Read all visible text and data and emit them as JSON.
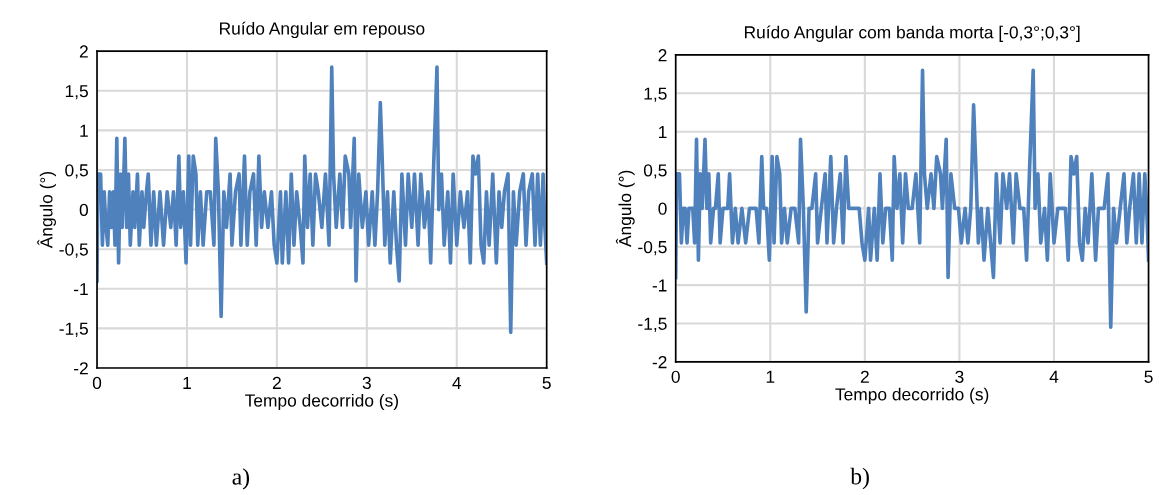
{
  "chart_data": [
    {
      "type": "line",
      "title": "Ruído Angular em repouso",
      "xlabel": "Tempo decorrido (s)",
      "ylabel": "Ângulo (°)",
      "annotations": [
        "a)"
      ],
      "xlim": [
        0,
        5
      ],
      "xticks": [
        0,
        1,
        2,
        3,
        4,
        5
      ],
      "ylim": [
        -2,
        2
      ],
      "yticks": [
        {
          "value": -2,
          "label": "-2"
        },
        {
          "value": -1.5,
          "label": "-1,5"
        },
        {
          "value": -1,
          "label": "-1"
        },
        {
          "value": -0.5,
          "label": "-0,5"
        },
        {
          "value": 0,
          "label": "0"
        },
        {
          "value": 0.5,
          "label": "0,5"
        },
        {
          "value": 1,
          "label": "1"
        },
        {
          "value": 1.5,
          "label": "1,5"
        },
        {
          "value": 2,
          "label": "2"
        }
      ],
      "grid": true,
      "legend": false,
      "marker": "none",
      "line_style": "solid",
      "x": [
        0,
        0.01,
        0.04,
        0.06,
        0.08,
        0.1,
        0.12,
        0.14,
        0.16,
        0.18,
        0.2,
        0.22,
        0.24,
        0.26,
        0.28,
        0.31,
        0.33,
        0.35,
        0.37,
        0.4,
        0.42,
        0.45,
        0.47,
        0.5,
        0.52,
        0.55,
        0.57,
        0.6,
        0.63,
        0.66,
        0.7,
        0.74,
        0.78,
        0.82,
        0.85,
        0.88,
        0.91,
        0.93,
        0.96,
        0.99,
        1.02,
        1.04,
        1.07,
        1.1,
        1.12,
        1.15,
        1.18,
        1.22,
        1.26,
        1.3,
        1.32,
        1.35,
        1.38,
        1.41,
        1.44,
        1.48,
        1.5,
        1.54,
        1.58,
        1.6,
        1.64,
        1.67,
        1.7,
        1.74,
        1.77,
        1.8,
        1.83,
        1.86,
        1.9,
        1.94,
        1.97,
        2.0,
        2.04,
        2.06,
        2.1,
        2.13,
        2.16,
        2.19,
        2.22,
        2.26,
        2.29,
        2.31,
        2.34,
        2.37,
        2.4,
        2.43,
        2.46,
        2.5,
        2.54,
        2.58,
        2.61,
        2.63,
        2.66,
        2.7,
        2.73,
        2.76,
        2.8,
        2.82,
        2.86,
        2.88,
        2.91,
        2.95,
        2.99,
        3.02,
        3.06,
        3.09,
        3.12,
        3.15,
        3.17,
        3.2,
        3.23,
        3.26,
        3.3,
        3.33,
        3.36,
        3.39,
        3.43,
        3.46,
        3.5,
        3.53,
        3.57,
        3.6,
        3.64,
        3.68,
        3.71,
        3.74,
        3.78,
        3.8,
        3.83,
        3.86,
        3.9,
        3.93,
        3.96,
        4.0,
        4.04,
        4.08,
        4.12,
        4.15,
        4.18,
        4.21,
        4.24,
        4.27,
        4.3,
        4.33,
        4.36,
        4.4,
        4.44,
        4.47,
        4.5,
        4.53,
        4.57,
        4.6,
        4.63,
        4.66,
        4.7,
        4.74,
        4.77,
        4.8,
        4.84,
        4.87,
        4.9,
        4.93,
        4.96,
        4.98,
        5.0
      ],
      "series": [
        {
          "color": "#4f81bd",
          "values": [
            -0.9,
            0.45,
            0.45,
            -0.45,
            0.225,
            -0.225,
            -0.45,
            0.225,
            -0.225,
            0.225,
            -0.45,
            0.9,
            -0.675,
            0.45,
            -0.225,
            0.9,
            -0.225,
            0.45,
            -0.45,
            0.225,
            -0.225,
            0.45,
            -0.45,
            0.225,
            -0.225,
            0.225,
            0.45,
            -0.45,
            0.225,
            -0.45,
            0.225,
            -0.45,
            0.225,
            -0.225,
            0.225,
            -0.45,
            0.675,
            -0.225,
            0.225,
            -0.675,
            0.675,
            -0.45,
            0.675,
            0.45,
            -0.45,
            0.225,
            -0.45,
            0.225,
            0.225,
            -0.45,
            0.9,
            0.225,
            -1.35,
            0.225,
            -0.225,
            0.45,
            -0.45,
            0.225,
            0.45,
            -0.45,
            0.675,
            -0.45,
            0.225,
            0.45,
            -0.45,
            0.675,
            -0.225,
            0.225,
            -0.225,
            0.225,
            -0.45,
            -0.675,
            0.225,
            -0.675,
            0.225,
            -0.675,
            0.45,
            -0.45,
            0.225,
            -0.225,
            -0.675,
            0.675,
            -0.225,
            0.45,
            -0.45,
            0.45,
            0.225,
            -0.225,
            0.45,
            -0.45,
            1.8,
            0.45,
            -0.225,
            0.45,
            -0.225,
            0.675,
            0.45,
            -0.225,
            0.9,
            -0.9,
            0.45,
            -0.225,
            0.225,
            -0.45,
            0.225,
            -0.45,
            0.225,
            1.35,
            0.675,
            -0.45,
            0.225,
            -0.675,
            0.225,
            -0.45,
            -0.9,
            0.45,
            -0.45,
            0.45,
            -0.225,
            0.45,
            -0.45,
            0.45,
            -0.225,
            0.225,
            -0.675,
            0.45,
            1.8,
            0.0,
            0.45,
            -0.45,
            0.225,
            -0.675,
            0.45,
            -0.45,
            0.225,
            -0.225,
            0.225,
            -0.675,
            0.675,
            0.45,
            0.675,
            -0.45,
            -0.675,
            0.225,
            -0.45,
            0.45,
            -0.675,
            0.225,
            -0.225,
            0.225,
            0.45,
            -1.55,
            0.225,
            -0.45,
            0.225,
            0.45,
            -0.45,
            0.225,
            0.45,
            -0.45,
            0.45,
            -0.45,
            0.45,
            -0.225,
            -0.675
          ]
        }
      ]
    },
    {
      "type": "line",
      "title": "Ruído Angular com banda morta [-0,3°;0,3°]",
      "xlabel": "Tempo decorrido (s)",
      "ylabel": "Ângulo (°)",
      "annotations": [
        "b)"
      ],
      "xlim": [
        0,
        5
      ],
      "xticks": [
        0,
        1,
        2,
        3,
        4,
        5
      ],
      "ylim": [
        -2,
        2
      ],
      "yticks": [
        {
          "value": -2,
          "label": "-2"
        },
        {
          "value": -1.5,
          "label": "-1,5"
        },
        {
          "value": -1,
          "label": "-1"
        },
        {
          "value": -0.5,
          "label": "-0,5"
        },
        {
          "value": 0,
          "label": "0"
        },
        {
          "value": 0.5,
          "label": "0,5"
        },
        {
          "value": 1,
          "label": "1"
        },
        {
          "value": 1.5,
          "label": "1,5"
        },
        {
          "value": 2,
          "label": "2"
        }
      ],
      "grid": true,
      "legend": false,
      "marker": "none",
      "line_style": "solid",
      "x": [
        0,
        0.01,
        0.04,
        0.06,
        0.08,
        0.1,
        0.12,
        0.14,
        0.16,
        0.18,
        0.2,
        0.22,
        0.24,
        0.26,
        0.28,
        0.31,
        0.33,
        0.35,
        0.37,
        0.4,
        0.42,
        0.45,
        0.47,
        0.5,
        0.52,
        0.55,
        0.57,
        0.6,
        0.63,
        0.66,
        0.7,
        0.74,
        0.78,
        0.82,
        0.85,
        0.88,
        0.91,
        0.93,
        0.96,
        0.99,
        1.02,
        1.04,
        1.07,
        1.1,
        1.12,
        1.15,
        1.18,
        1.22,
        1.26,
        1.3,
        1.32,
        1.35,
        1.38,
        1.41,
        1.44,
        1.48,
        1.5,
        1.54,
        1.58,
        1.6,
        1.64,
        1.67,
        1.7,
        1.74,
        1.77,
        1.8,
        1.83,
        1.86,
        1.9,
        1.94,
        1.97,
        2.0,
        2.04,
        2.06,
        2.1,
        2.13,
        2.16,
        2.19,
        2.22,
        2.26,
        2.29,
        2.31,
        2.34,
        2.37,
        2.4,
        2.43,
        2.46,
        2.5,
        2.54,
        2.58,
        2.61,
        2.63,
        2.66,
        2.7,
        2.73,
        2.76,
        2.8,
        2.82,
        2.86,
        2.88,
        2.91,
        2.95,
        2.99,
        3.02,
        3.06,
        3.09,
        3.12,
        3.15,
        3.17,
        3.2,
        3.23,
        3.26,
        3.3,
        3.33,
        3.36,
        3.39,
        3.43,
        3.46,
        3.5,
        3.53,
        3.57,
        3.6,
        3.64,
        3.68,
        3.71,
        3.74,
        3.78,
        3.8,
        3.83,
        3.86,
        3.9,
        3.93,
        3.96,
        4.0,
        4.04,
        4.08,
        4.12,
        4.15,
        4.18,
        4.21,
        4.24,
        4.27,
        4.3,
        4.33,
        4.36,
        4.4,
        4.44,
        4.47,
        4.5,
        4.53,
        4.57,
        4.6,
        4.63,
        4.66,
        4.7,
        4.74,
        4.77,
        4.8,
        4.84,
        4.87,
        4.9,
        4.93,
        4.96,
        4.98,
        5.0
      ],
      "series": [
        {
          "color": "#4f81bd",
          "values": [
            -0.9,
            0.45,
            0.45,
            -0.45,
            0,
            0,
            -0.45,
            0,
            0,
            0,
            -0.45,
            0.9,
            -0.675,
            0.45,
            0,
            0.9,
            0,
            0.45,
            -0.45,
            0,
            0,
            0.45,
            -0.45,
            0,
            0,
            0,
            0.45,
            -0.45,
            0,
            -0.45,
            0,
            -0.45,
            0,
            0,
            0,
            -0.45,
            0.675,
            0,
            0,
            -0.675,
            0.675,
            -0.45,
            0.675,
            0.45,
            -0.45,
            0,
            -0.45,
            0,
            0,
            -0.45,
            0.9,
            0,
            -1.35,
            0,
            0,
            0.45,
            -0.45,
            0,
            0.45,
            -0.45,
            0.675,
            -0.45,
            0,
            0.45,
            -0.45,
            0.675,
            0,
            0,
            0,
            0,
            -0.45,
            -0.675,
            0,
            -0.675,
            0,
            -0.675,
            0.45,
            -0.45,
            0,
            0,
            -0.675,
            0.675,
            0,
            0.45,
            -0.45,
            0.45,
            0,
            0,
            0.45,
            -0.45,
            1.8,
            0.45,
            0,
            0.45,
            0,
            0.675,
            0.45,
            0,
            0.9,
            -0.9,
            0.45,
            0,
            0,
            -0.45,
            0,
            -0.45,
            0,
            1.35,
            0.675,
            -0.45,
            0,
            -0.675,
            0,
            -0.45,
            -0.9,
            0.45,
            -0.45,
            0.45,
            0,
            0.45,
            -0.45,
            0.45,
            0,
            0,
            -0.675,
            0.45,
            1.8,
            0,
            0.45,
            -0.45,
            0,
            -0.675,
            0.45,
            -0.45,
            0,
            0,
            0,
            -0.675,
            0.675,
            0.45,
            0.675,
            -0.45,
            -0.675,
            0,
            -0.45,
            0.45,
            -0.675,
            0,
            0,
            0,
            0.45,
            -1.55,
            0,
            -0.45,
            0,
            0.45,
            -0.45,
            0,
            0.45,
            -0.45,
            0.45,
            -0.45,
            0.45,
            0,
            -0.675
          ]
        }
      ]
    }
  ]
}
